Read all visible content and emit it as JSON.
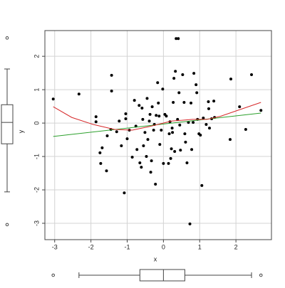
{
  "chart_data": {
    "type": "scatter",
    "xlabel": "x",
    "ylabel": "y",
    "x": [
      -3.04,
      -2.33,
      -1.86,
      -1.86,
      -1.75,
      -1.69,
      -1.73,
      -1.57,
      -1.55,
      -1.43,
      -1.43,
      -1.45,
      -1.29,
      -1.22,
      -1.16,
      -1.08,
      -1.04,
      -1.04,
      -1.0,
      -0.94,
      -0.86,
      -0.8,
      -0.76,
      -0.73,
      -0.67,
      -0.65,
      -0.61,
      -0.59,
      -0.57,
      -0.55,
      -0.51,
      -0.47,
      -0.45,
      -0.43,
      -0.39,
      -0.37,
      -0.35,
      -0.33,
      -0.31,
      -0.27,
      -0.25,
      -0.22,
      -0.2,
      -0.16,
      -0.14,
      -0.12,
      -0.1,
      -0.06,
      -0.02,
      0.0,
      0.04,
      0.08,
      0.14,
      0.16,
      0.18,
      0.2,
      0.22,
      0.24,
      0.25,
      0.27,
      0.29,
      0.31,
      0.33,
      0.35,
      0.41,
      0.39,
      0.43,
      0.45,
      0.47,
      0.53,
      0.57,
      0.59,
      0.61,
      0.65,
      0.69,
      0.73,
      0.76,
      0.78,
      0.82,
      0.84,
      0.9,
      0.92,
      0.94,
      0.98,
      1.02,
      1.06,
      1.1,
      1.18,
      1.24,
      1.25,
      1.27,
      1.33,
      1.41,
      1.84,
      1.86,
      2.1,
      2.27,
      2.43,
      2.69,
      1.39
    ],
    "y": [
      0.72,
      0.87,
      0.19,
      0.04,
      -0.89,
      -0.74,
      -1.21,
      -1.43,
      -0.38,
      1.43,
      0.96,
      -0.19,
      -0.26,
      0.06,
      -0.68,
      -2.09,
      0.28,
      0.13,
      -0.47,
      -0.21,
      -1.02,
      0.68,
      -0.09,
      -0.79,
      0.53,
      -1.19,
      -1.32,
      0.45,
      0.11,
      -0.68,
      -0.28,
      -1.0,
      0.74,
      -0.49,
      0.06,
      0.26,
      -1.47,
      -1.13,
      0.49,
      -0.21,
      -0.04,
      -1.83,
      0.23,
      1.21,
      0.6,
      0.21,
      -0.64,
      -0.21,
      1.02,
      -1.21,
      0.26,
      0.21,
      -1.21,
      -0.32,
      0.04,
      -1.06,
      -0.77,
      -0.15,
      -0.28,
      0.62,
      1.34,
      -0.85,
      1.55,
      2.53,
      2.53,
      0.11,
      0.91,
      -0.06,
      -0.81,
      1.45,
      0.62,
      -0.32,
      -0.57,
      -1.19,
      0.02,
      -3.02,
      0.6,
      -0.79,
      0.02,
      1.49,
      1.15,
      0.91,
      0.11,
      -0.32,
      -0.36,
      -1.87,
      0.15,
      -0.04,
      0.64,
      0.43,
      -0.15,
      0.13,
      0.17,
      -0.49,
      1.32,
      0.49,
      -0.19,
      1.45,
      0.38,
      0.66
    ],
    "xlim": [
      -3.27,
      2.98
    ],
    "ylim": [
      -3.49,
      2.77
    ],
    "xticks": [
      -3,
      -2,
      -1,
      0,
      1,
      2
    ],
    "yticks": [
      -3,
      -2,
      -1,
      0,
      1,
      2
    ],
    "grid": true,
    "color": "#000000",
    "fits": [
      {
        "color": "#2ca02c",
        "x": [
          -3.04,
          2.69
        ],
        "y": [
          -0.4,
          0.3
        ]
      },
      {
        "color": "#d62728",
        "x": [
          -3.04,
          -2.53,
          -1.94,
          -1.35,
          -0.86,
          -0.37,
          0.22,
          0.8,
          1.2,
          1.59,
          2.18,
          2.69
        ],
        "y": [
          0.49,
          0.17,
          -0.04,
          -0.19,
          -0.21,
          -0.1,
          0.06,
          0.11,
          0.11,
          0.21,
          0.43,
          0.62
        ]
      }
    ],
    "x_box": {
      "min": -2.33,
      "q1": -0.65,
      "median": 0.0,
      "q3": 0.59,
      "max": 2.43,
      "outliers": [
        -3.04,
        2.69
      ]
    },
    "y_box": {
      "min": -2.06,
      "q1": -0.62,
      "median": 0.02,
      "q3": 0.55,
      "max": 1.62,
      "outliers": [
        2.55,
        -3.04
      ]
    }
  }
}
